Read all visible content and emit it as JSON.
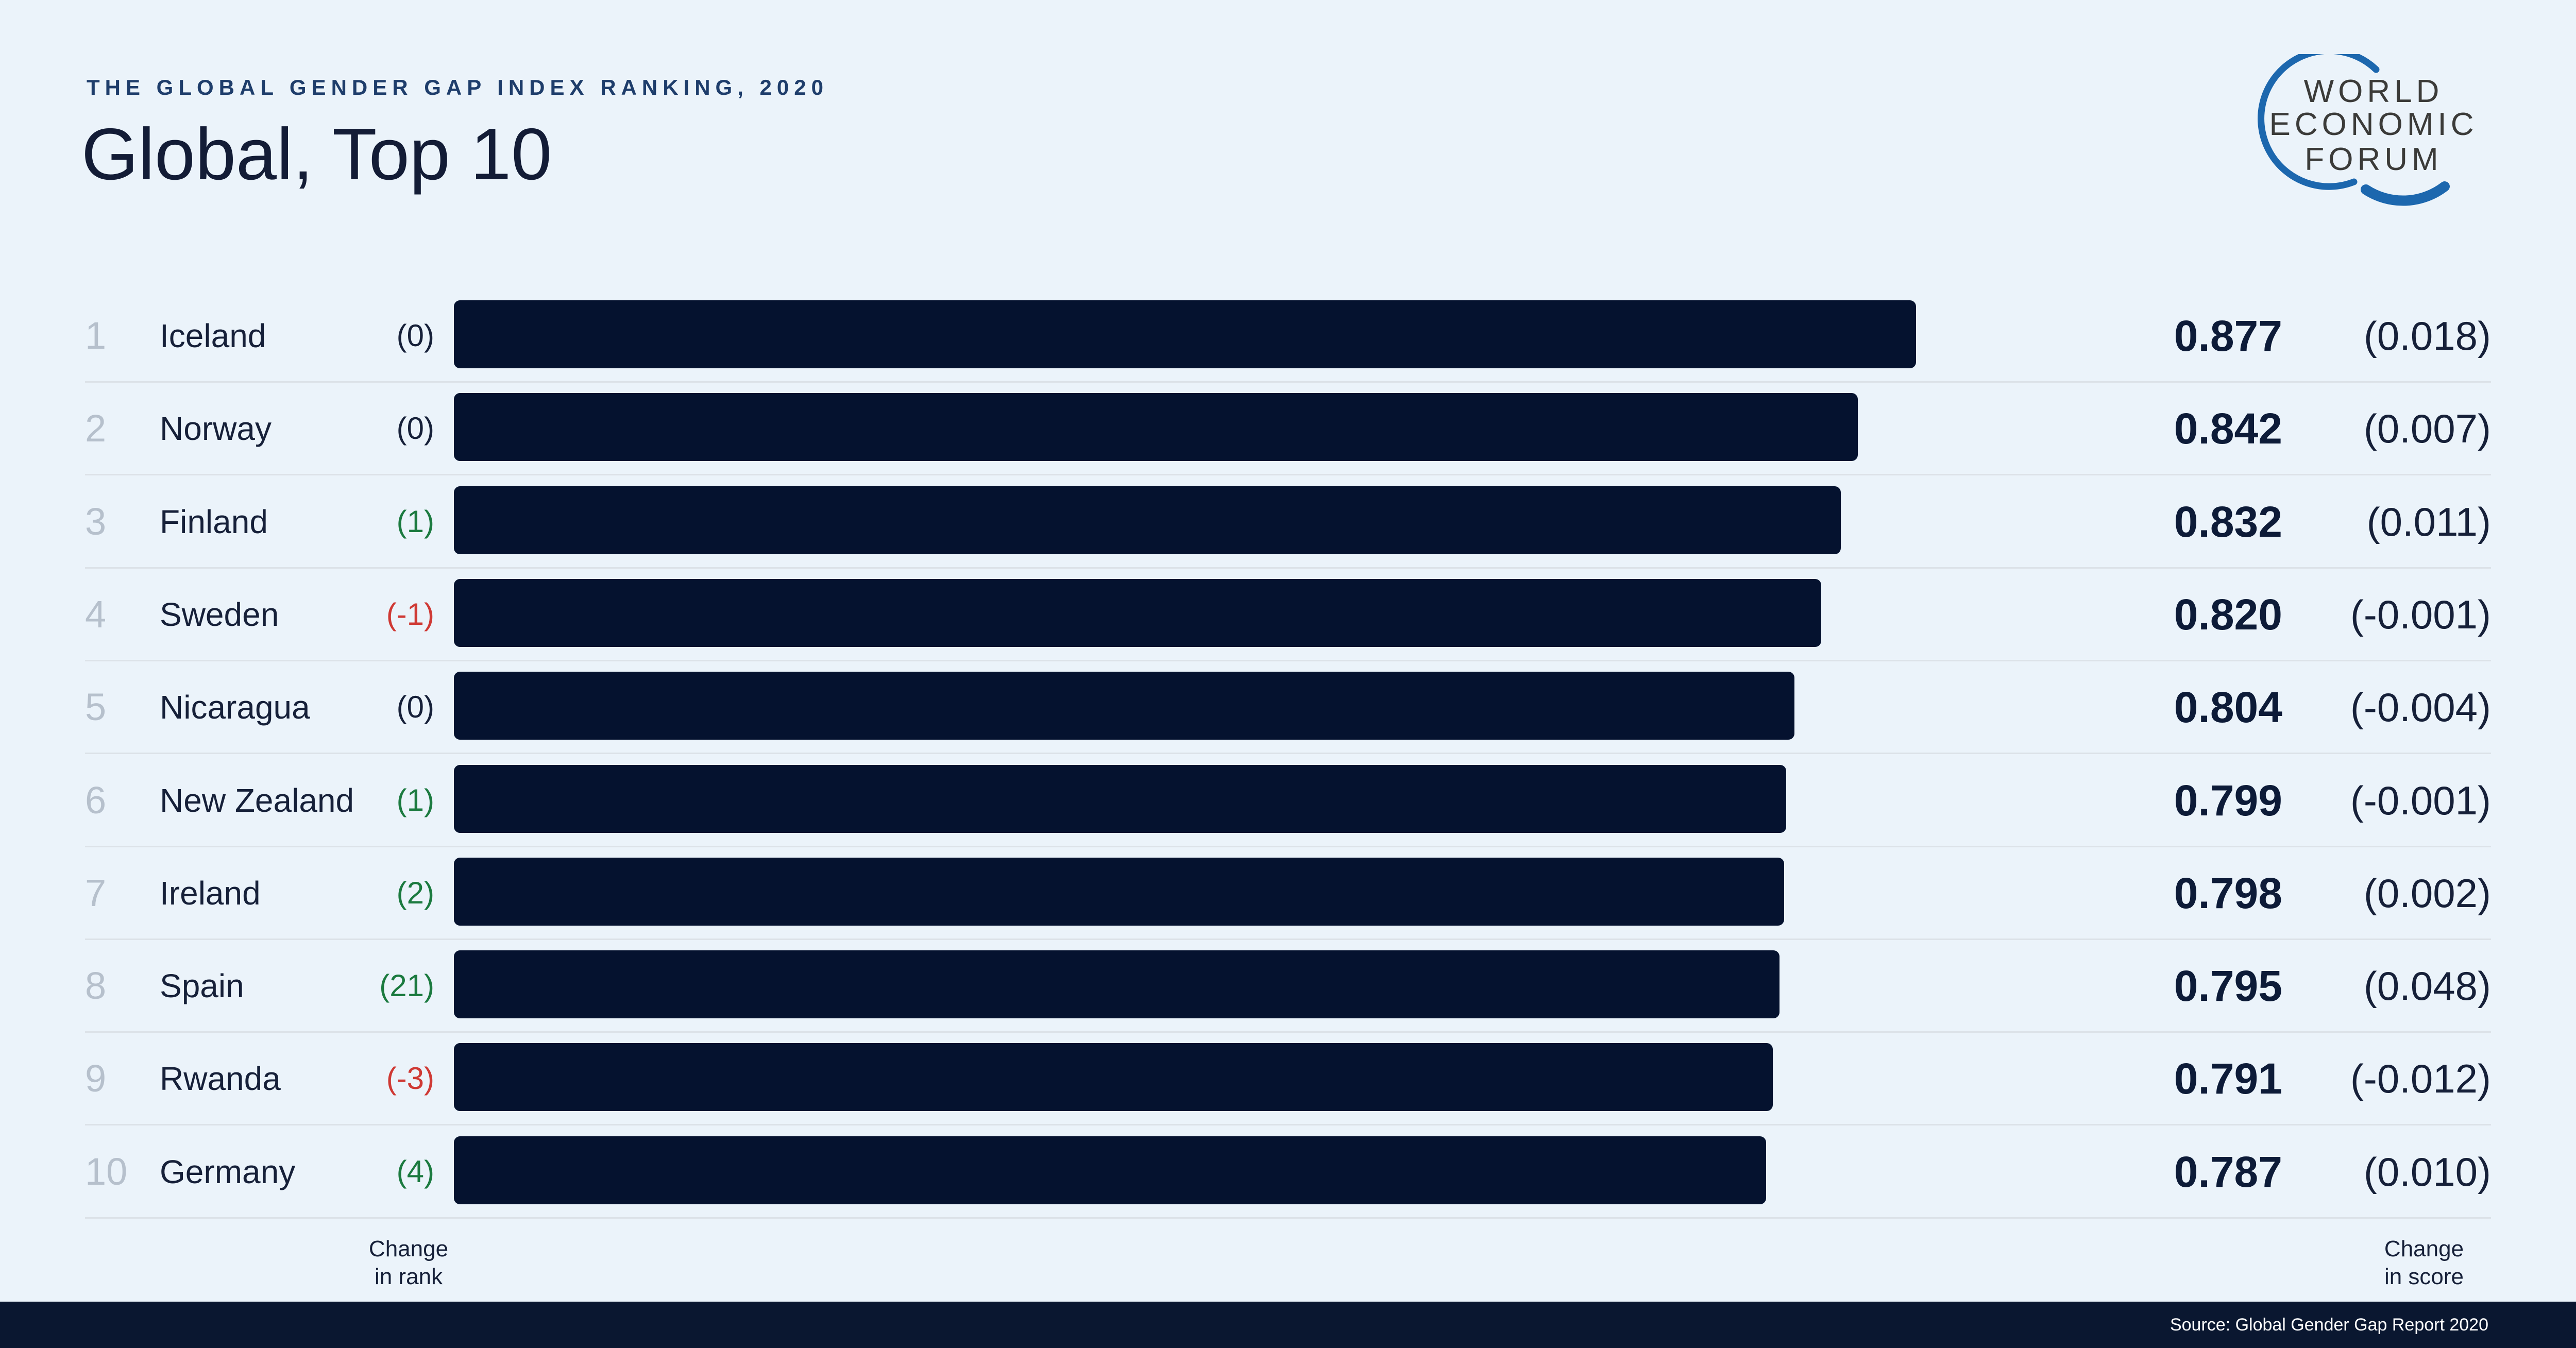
{
  "header": {
    "kicker": "THE GLOBAL GENDER GAP INDEX RANKING, 2020",
    "title": "Global, Top 10"
  },
  "logo": {
    "line1": "WORLD",
    "line2": "ECONOMIC",
    "line3": "FORUM"
  },
  "rows": [
    {
      "rank": "1",
      "country": "Iceland",
      "rank_change": "(0)",
      "rank_change_dir": "neutral",
      "score": "0.877",
      "score_value": 0.877,
      "score_change": "(0.018)"
    },
    {
      "rank": "2",
      "country": "Norway",
      "rank_change": "(0)",
      "rank_change_dir": "neutral",
      "score": "0.842",
      "score_value": 0.842,
      "score_change": "(0.007)"
    },
    {
      "rank": "3",
      "country": "Finland",
      "rank_change": "(1)",
      "rank_change_dir": "up",
      "score": "0.832",
      "score_value": 0.832,
      "score_change": "(0.011)"
    },
    {
      "rank": "4",
      "country": "Sweden",
      "rank_change": "(-1)",
      "rank_change_dir": "down",
      "score": "0.820",
      "score_value": 0.82,
      "score_change": "(-0.001)"
    },
    {
      "rank": "5",
      "country": "Nicaragua",
      "rank_change": "(0)",
      "rank_change_dir": "neutral",
      "score": "0.804",
      "score_value": 0.804,
      "score_change": "(-0.004)"
    },
    {
      "rank": "6",
      "country": "New Zealand",
      "rank_change": "(1)",
      "rank_change_dir": "up",
      "score": "0.799",
      "score_value": 0.799,
      "score_change": "(-0.001)"
    },
    {
      "rank": "7",
      "country": "Ireland",
      "rank_change": "(2)",
      "rank_change_dir": "up",
      "score": "0.798",
      "score_value": 0.798,
      "score_change": "(0.002)"
    },
    {
      "rank": "8",
      "country": "Spain",
      "rank_change": "(21)",
      "rank_change_dir": "up",
      "score": "0.795",
      "score_value": 0.795,
      "score_change": "(0.048)"
    },
    {
      "rank": "9",
      "country": "Rwanda",
      "rank_change": "(-3)",
      "rank_change_dir": "down",
      "score": "0.791",
      "score_value": 0.791,
      "score_change": "(-0.012)"
    },
    {
      "rank": "10",
      "country": "Germany",
      "rank_change": "(4)",
      "rank_change_dir": "up",
      "score": "0.787",
      "score_value": 0.787,
      "score_change": "(0.010)"
    }
  ],
  "footnotes": {
    "rank_change_line1": "Change",
    "rank_change_line2": "in rank",
    "score_change_line1": "Change",
    "score_change_line2": "in score"
  },
  "footer": {
    "source": "Source: Global Gender Gap Report 2020"
  },
  "colors": {
    "background": "#EBF3FA",
    "bar_navy": "#05122F",
    "footer_navy": "#0A1730",
    "kicker_blue": "#1E3D6B",
    "title_navy": "#131C36",
    "text_navy": "#162039",
    "rank_gray": "#B6C0CC",
    "positive_green": "#1B7A3F",
    "negative_red": "#CF3934",
    "separator_gray": "#DCE2E8",
    "logo_gray": "#3B3B39",
    "logo_arc_blue": "#1C67AE",
    "footer_text": "#FFFFFF"
  },
  "chart_data": {
    "type": "bar",
    "orientation": "horizontal",
    "title": "THE GLOBAL GENDER GAP INDEX RANKING, 2020 — Global, Top 10",
    "categories": [
      "Iceland",
      "Norway",
      "Finland",
      "Sweden",
      "Nicaragua",
      "New Zealand",
      "Ireland",
      "Spain",
      "Rwanda",
      "Germany"
    ],
    "values": [
      0.877,
      0.842,
      0.832,
      0.82,
      0.804,
      0.799,
      0.798,
      0.795,
      0.791,
      0.787
    ],
    "ranks": [
      1,
      2,
      3,
      4,
      5,
      6,
      7,
      8,
      9,
      10
    ],
    "rank_changes": [
      0,
      0,
      1,
      -1,
      0,
      1,
      2,
      21,
      -3,
      4
    ],
    "score_changes": [
      0.018,
      0.007,
      0.011,
      -0.001,
      -0.004,
      -0.001,
      0.002,
      0.048,
      -0.012,
      0.01
    ],
    "xlabel": "",
    "ylabel": "",
    "xlim": [
      0,
      1
    ],
    "grid": false,
    "legend": null,
    "bar_color": "#05122F",
    "annotations": [
      "Change in rank",
      "Change in score"
    ],
    "source": "Source: Global Gender Gap Report 2020"
  }
}
